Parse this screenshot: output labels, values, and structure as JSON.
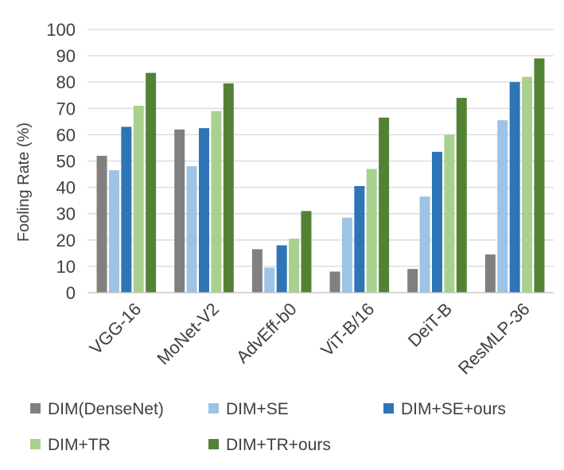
{
  "chart_data": {
    "type": "bar",
    "title": "",
    "xlabel": "",
    "ylabel": "Fooling Rate (%)",
    "ylim": [
      0,
      100
    ],
    "yticks": [
      "0",
      "10",
      "20",
      "30",
      "40",
      "50",
      "60",
      "70",
      "80",
      "90",
      "100"
    ],
    "grid": true,
    "legend_position": "bottom",
    "categories": [
      "VGG-16",
      "MoNet-V2",
      "AdvEff-b0",
      "ViT-B/16",
      "DeiT-B",
      "ResMLP-36"
    ],
    "series": [
      {
        "name": "DIM(DenseNet)",
        "color": "#808080",
        "values": [
          52,
          62,
          16.5,
          8,
          9,
          14.5
        ]
      },
      {
        "name": "DIM+SE",
        "color": "#9dc3e6",
        "values": [
          46.5,
          48,
          9.5,
          28.5,
          36.5,
          65.5
        ]
      },
      {
        "name": "DIM+SE+ours",
        "color": "#2e75b6",
        "values": [
          63,
          62.5,
          18,
          40.5,
          53.5,
          80
        ]
      },
      {
        "name": "DIM+TR",
        "color": "#a9d18e",
        "values": [
          71,
          69,
          20.5,
          47,
          60,
          82
        ]
      },
      {
        "name": "DIM+TR+ours",
        "color": "#548235",
        "values": [
          83.5,
          79.5,
          31,
          66.5,
          74,
          89
        ]
      }
    ]
  }
}
